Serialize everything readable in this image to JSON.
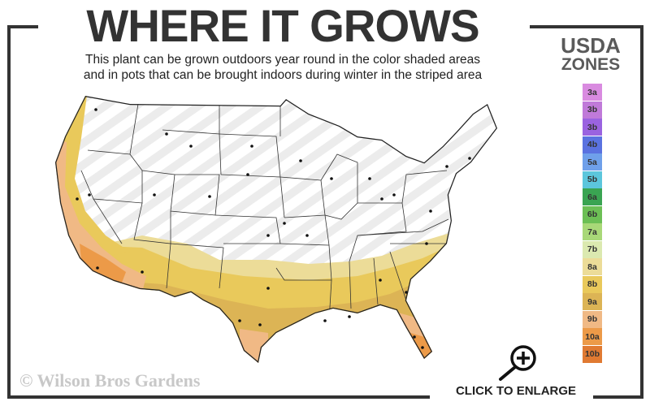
{
  "header": {
    "title": "WHERE IT GROWS",
    "subtitle_line1": "This plant can be grown outdoors year round in the color shaded areas",
    "subtitle_line2": "and in pots that can be brought indoors during winter in the striped area"
  },
  "legend": {
    "title_line1": "USDA",
    "title_line2": "ZONES",
    "zones": [
      {
        "label": "3a",
        "color": "#d98be0"
      },
      {
        "label": "3b",
        "color": "#c07ad9"
      },
      {
        "label": "3b",
        "color": "#9a63e0"
      },
      {
        "label": "4b",
        "color": "#5a72e0"
      },
      {
        "label": "5a",
        "color": "#6fa0ea"
      },
      {
        "label": "5b",
        "color": "#5cc6dc"
      },
      {
        "label": "6a",
        "color": "#3aa452"
      },
      {
        "label": "6b",
        "color": "#6cbf55"
      },
      {
        "label": "7a",
        "color": "#a9d878"
      },
      {
        "label": "7b",
        "color": "#dbe9b0"
      },
      {
        "label": "8a",
        "color": "#ecdc98"
      },
      {
        "label": "8b",
        "color": "#e9c95b"
      },
      {
        "label": "9a",
        "color": "#dcb455"
      },
      {
        "label": "9b",
        "color": "#f0b985"
      },
      {
        "label": "10a",
        "color": "#ec9a48"
      },
      {
        "label": "10b",
        "color": "#e07a32"
      }
    ]
  },
  "map": {
    "stripe_area": "striped",
    "shaded_zones_shown": [
      "8a",
      "8b",
      "9a",
      "9b",
      "10a",
      "10b"
    ]
  },
  "footer": {
    "copyright": "© Wilson Bros Gardens",
    "enlarge_label": "CLICK TO ENLARGE",
    "enlarge_icon": "magnifier-plus-icon"
  }
}
